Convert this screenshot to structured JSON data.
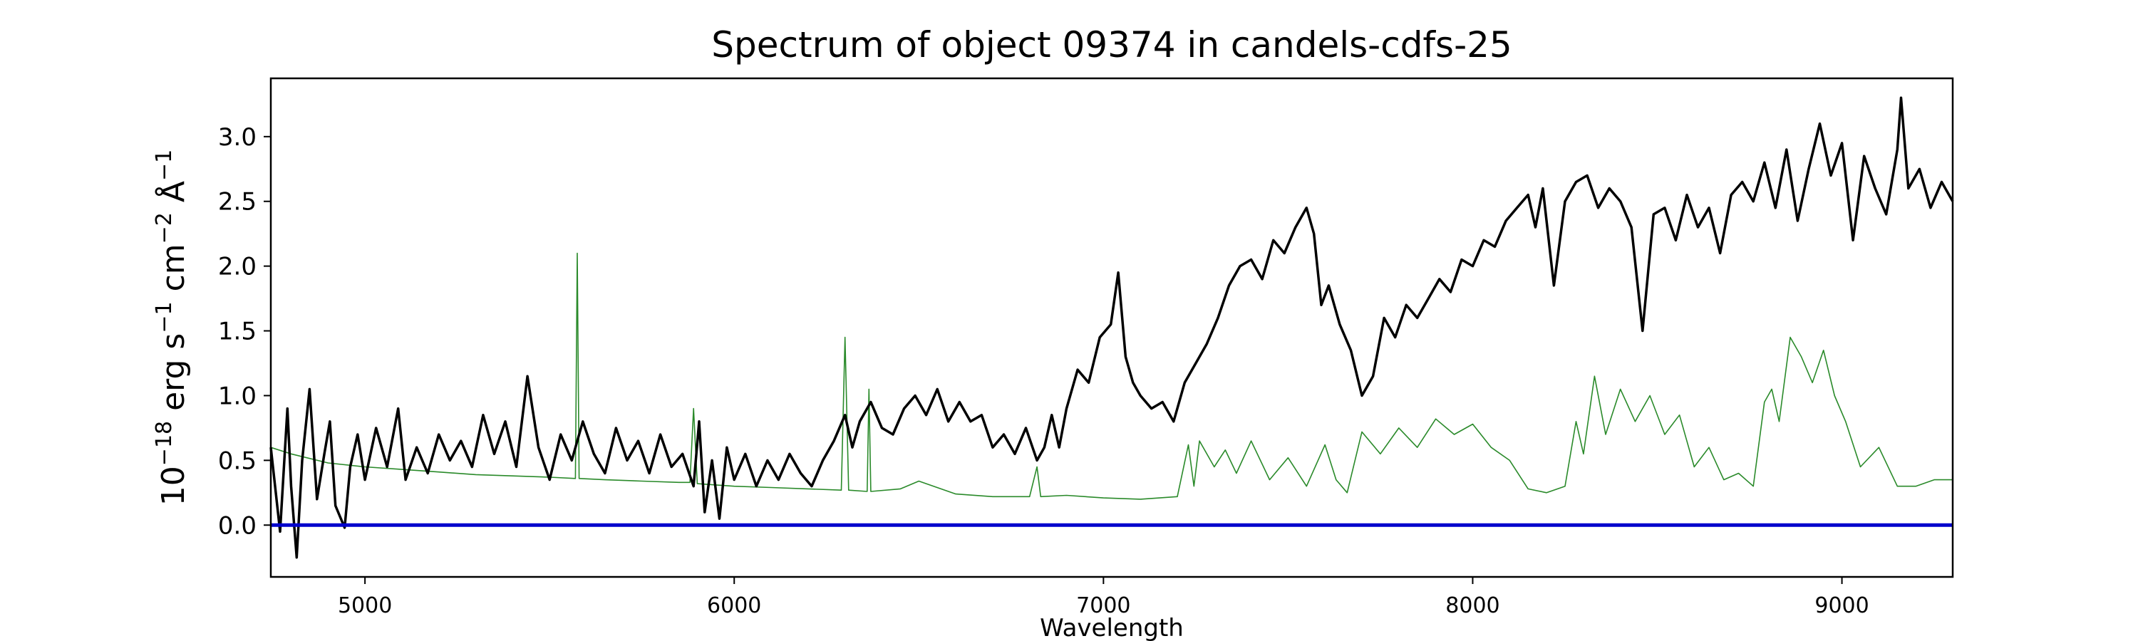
{
  "chart_data": {
    "type": "line",
    "title": "Spectrum of object 09374 in candels-cdfs-25",
    "xlabel": "Wavelength",
    "ylabel_parts": [
      "10",
      "−18",
      " erg s",
      "−1",
      " cm",
      "−2",
      " Å",
      "−1"
    ],
    "xlim": [
      4745,
      9300
    ],
    "ylim": [
      -0.4,
      3.45
    ],
    "x_ticks": [
      5000,
      6000,
      7000,
      8000,
      9000
    ],
    "y_ticks": [
      0.0,
      0.5,
      1.0,
      1.5,
      2.0,
      2.5,
      3.0
    ],
    "y_tick_labels": [
      "0.0",
      "0.5",
      "1.0",
      "1.5",
      "2.0",
      "2.5",
      "3.0"
    ],
    "grid": false,
    "series": [
      {
        "role": "flux",
        "color": "#000000",
        "x": [
          4745,
          4770,
          4790,
          4800,
          4815,
          4830,
          4850,
          4870,
          4890,
          4905,
          4920,
          4945,
          4960,
          4980,
          5000,
          5030,
          5060,
          5090,
          5110,
          5140,
          5170,
          5200,
          5230,
          5260,
          5290,
          5320,
          5350,
          5380,
          5410,
          5440,
          5470,
          5500,
          5530,
          5560,
          5590,
          5620,
          5650,
          5680,
          5710,
          5740,
          5770,
          5800,
          5830,
          5860,
          5890,
          5905,
          5920,
          5940,
          5960,
          5980,
          6000,
          6030,
          6060,
          6090,
          6120,
          6150,
          6180,
          6210,
          6240,
          6270,
          6300,
          6320,
          6340,
          6370,
          6400,
          6430,
          6460,
          6490,
          6520,
          6550,
          6580,
          6610,
          6640,
          6670,
          6700,
          6730,
          6760,
          6790,
          6820,
          6840,
          6860,
          6880,
          6900,
          6930,
          6960,
          6990,
          7020,
          7040,
          7060,
          7080,
          7100,
          7130,
          7160,
          7190,
          7220,
          7250,
          7280,
          7310,
          7340,
          7370,
          7400,
          7430,
          7460,
          7490,
          7520,
          7550,
          7570,
          7590,
          7610,
          7640,
          7670,
          7700,
          7730,
          7760,
          7790,
          7820,
          7850,
          7880,
          7910,
          7940,
          7970,
          8000,
          8030,
          8060,
          8090,
          8120,
          8150,
          8170,
          8190,
          8220,
          8250,
          8280,
          8310,
          8340,
          8370,
          8400,
          8430,
          8460,
          8490,
          8520,
          8550,
          8580,
          8610,
          8640,
          8670,
          8700,
          8730,
          8760,
          8790,
          8820,
          8850,
          8880,
          8910,
          8940,
          8970,
          9000,
          9030,
          9060,
          9090,
          9120,
          9150,
          9160,
          9180,
          9210,
          9240,
          9270,
          9300
        ],
        "y": [
          0.6,
          -0.05,
          0.9,
          0.3,
          -0.25,
          0.5,
          1.05,
          0.2,
          0.55,
          0.8,
          0.15,
          -0.02,
          0.45,
          0.7,
          0.35,
          0.75,
          0.45,
          0.9,
          0.35,
          0.6,
          0.4,
          0.7,
          0.5,
          0.65,
          0.45,
          0.85,
          0.55,
          0.8,
          0.45,
          1.15,
          0.6,
          0.35,
          0.7,
          0.5,
          0.8,
          0.55,
          0.4,
          0.75,
          0.5,
          0.65,
          0.4,
          0.7,
          0.45,
          0.55,
          0.3,
          0.8,
          0.1,
          0.5,
          0.05,
          0.6,
          0.35,
          0.55,
          0.3,
          0.5,
          0.35,
          0.55,
          0.4,
          0.3,
          0.5,
          0.65,
          0.85,
          0.6,
          0.8,
          0.95,
          0.75,
          0.7,
          0.9,
          1.0,
          0.85,
          1.05,
          0.8,
          0.95,
          0.8,
          0.85,
          0.6,
          0.7,
          0.55,
          0.75,
          0.5,
          0.6,
          0.85,
          0.6,
          0.9,
          1.2,
          1.1,
          1.45,
          1.55,
          1.95,
          1.3,
          1.1,
          1.0,
          0.9,
          0.95,
          0.8,
          1.1,
          1.25,
          1.4,
          1.6,
          1.85,
          2.0,
          2.05,
          1.9,
          2.2,
          2.1,
          2.3,
          2.45,
          2.25,
          1.7,
          1.85,
          1.55,
          1.35,
          1.0,
          1.15,
          1.6,
          1.45,
          1.7,
          1.6,
          1.75,
          1.9,
          1.8,
          2.05,
          2.0,
          2.2,
          2.15,
          2.35,
          2.45,
          2.55,
          2.3,
          2.6,
          1.85,
          2.5,
          2.65,
          2.7,
          2.45,
          2.6,
          2.5,
          2.3,
          1.5,
          2.4,
          2.45,
          2.2,
          2.55,
          2.3,
          2.45,
          2.1,
          2.55,
          2.65,
          2.5,
          2.8,
          2.45,
          2.9,
          2.35,
          2.75,
          3.1,
          2.7,
          2.95,
          2.2,
          2.85,
          2.6,
          2.4,
          2.9,
          3.3,
          2.6,
          2.75,
          2.45,
          2.65,
          2.5
        ]
      },
      {
        "role": "model",
        "color": "#2a8a2a",
        "x": [
          4745,
          4800,
          4900,
          5000,
          5100,
          5200,
          5300,
          5400,
          5500,
          5570,
          5575,
          5580,
          5650,
          5750,
          5850,
          5880,
          5890,
          5900,
          6000,
          6100,
          6200,
          6290,
          6300,
          6310,
          6360,
          6365,
          6370,
          6450,
          6500,
          6600,
          6700,
          6800,
          6820,
          6830,
          6900,
          7000,
          7100,
          7200,
          7230,
          7245,
          7260,
          7300,
          7330,
          7360,
          7400,
          7450,
          7500,
          7550,
          7600,
          7630,
          7660,
          7700,
          7750,
          7800,
          7850,
          7900,
          7950,
          8000,
          8050,
          8100,
          8150,
          8200,
          8250,
          8280,
          8300,
          8330,
          8360,
          8400,
          8440,
          8480,
          8520,
          8560,
          8600,
          8640,
          8680,
          8720,
          8760,
          8790,
          8810,
          8830,
          8860,
          8890,
          8920,
          8950,
          8980,
          9010,
          9050,
          9100,
          9150,
          9200,
          9250,
          9300
        ],
        "y": [
          0.6,
          0.55,
          0.48,
          0.45,
          0.43,
          0.41,
          0.39,
          0.38,
          0.37,
          0.36,
          2.1,
          0.36,
          0.35,
          0.34,
          0.33,
          0.33,
          0.9,
          0.32,
          0.3,
          0.29,
          0.28,
          0.27,
          1.45,
          0.27,
          0.26,
          1.05,
          0.26,
          0.28,
          0.34,
          0.24,
          0.22,
          0.22,
          0.45,
          0.22,
          0.23,
          0.21,
          0.2,
          0.22,
          0.62,
          0.3,
          0.65,
          0.45,
          0.58,
          0.4,
          0.65,
          0.35,
          0.52,
          0.3,
          0.62,
          0.35,
          0.25,
          0.72,
          0.55,
          0.75,
          0.6,
          0.82,
          0.7,
          0.78,
          0.6,
          0.5,
          0.28,
          0.25,
          0.3,
          0.8,
          0.55,
          1.15,
          0.7,
          1.05,
          0.8,
          1.0,
          0.7,
          0.85,
          0.45,
          0.6,
          0.35,
          0.4,
          0.3,
          0.95,
          1.05,
          0.8,
          1.45,
          1.3,
          1.1,
          1.35,
          1.0,
          0.8,
          0.45,
          0.6,
          0.3,
          0.3,
          0.35,
          0.35
        ]
      },
      {
        "role": "zero-line",
        "color": "#0000cc",
        "x": [
          4745,
          9300
        ],
        "y": [
          0.0,
          0.0
        ]
      }
    ]
  }
}
